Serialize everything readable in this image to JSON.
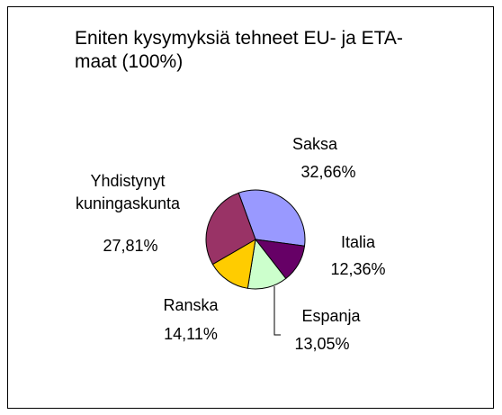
{
  "chart_data": {
    "type": "pie",
    "title": "Eniten kysymyksiä tehneet EU- ja ETA-maat (100%)",
    "categories": [
      "Saksa",
      "Italia",
      "Espanja",
      "Ranska",
      "Yhdistynyt kuningaskunta"
    ],
    "values": [
      32.66,
      12.36,
      13.05,
      14.11,
      27.81
    ],
    "value_labels": [
      "32,66%",
      "12,36%",
      "13,05%",
      "14,11%",
      "27,81%"
    ],
    "colors": [
      "#9999ff",
      "#660066",
      "#ccffcc",
      "#ffcc00",
      "#993366"
    ]
  }
}
